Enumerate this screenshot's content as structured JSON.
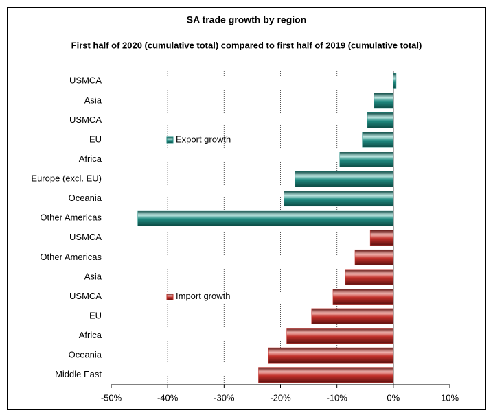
{
  "chart_data": {
    "type": "bar",
    "orientation": "horizontal",
    "title": "SA trade growth by region",
    "subtitle": "First half of 2020 (cumulative total) compared to first half of 2019 (cumulative total)",
    "categories": [
      "USMCA",
      "Asia",
      "USMCA",
      "EU",
      "Africa",
      "Europe (excl. EU)",
      "Oceania",
      "Other Americas",
      "USMCA",
      "Other Americas",
      "Asia",
      "USMCA",
      "EU",
      "Africa",
      "Oceania",
      "Middle East"
    ],
    "series": [
      {
        "name": "Export growth",
        "color": "#1f8a80",
        "values": [
          0.5,
          -3.4,
          -4.6,
          -5.5,
          -9.5,
          -17.4,
          -19.4,
          -45.3,
          null,
          null,
          null,
          null,
          null,
          null,
          null,
          null
        ]
      },
      {
        "name": "Import growth",
        "color": "#c0302a",
        "values": [
          null,
          null,
          null,
          null,
          null,
          null,
          null,
          null,
          -4.1,
          -6.8,
          -8.5,
          -10.7,
          -14.5,
          -18.9,
          -22.1,
          -23.9
        ]
      }
    ],
    "xlim": [
      -50,
      10
    ],
    "xticks": [
      {
        "value": -50,
        "label": "-50%"
      },
      {
        "value": -40,
        "label": "-40%"
      },
      {
        "value": -30,
        "label": "-30%"
      },
      {
        "value": -20,
        "label": "-20%"
      },
      {
        "value": -10,
        "label": "-10%"
      },
      {
        "value": 0,
        "label": "0%"
      },
      {
        "value": 10,
        "label": "10%"
      }
    ],
    "grid": true
  }
}
